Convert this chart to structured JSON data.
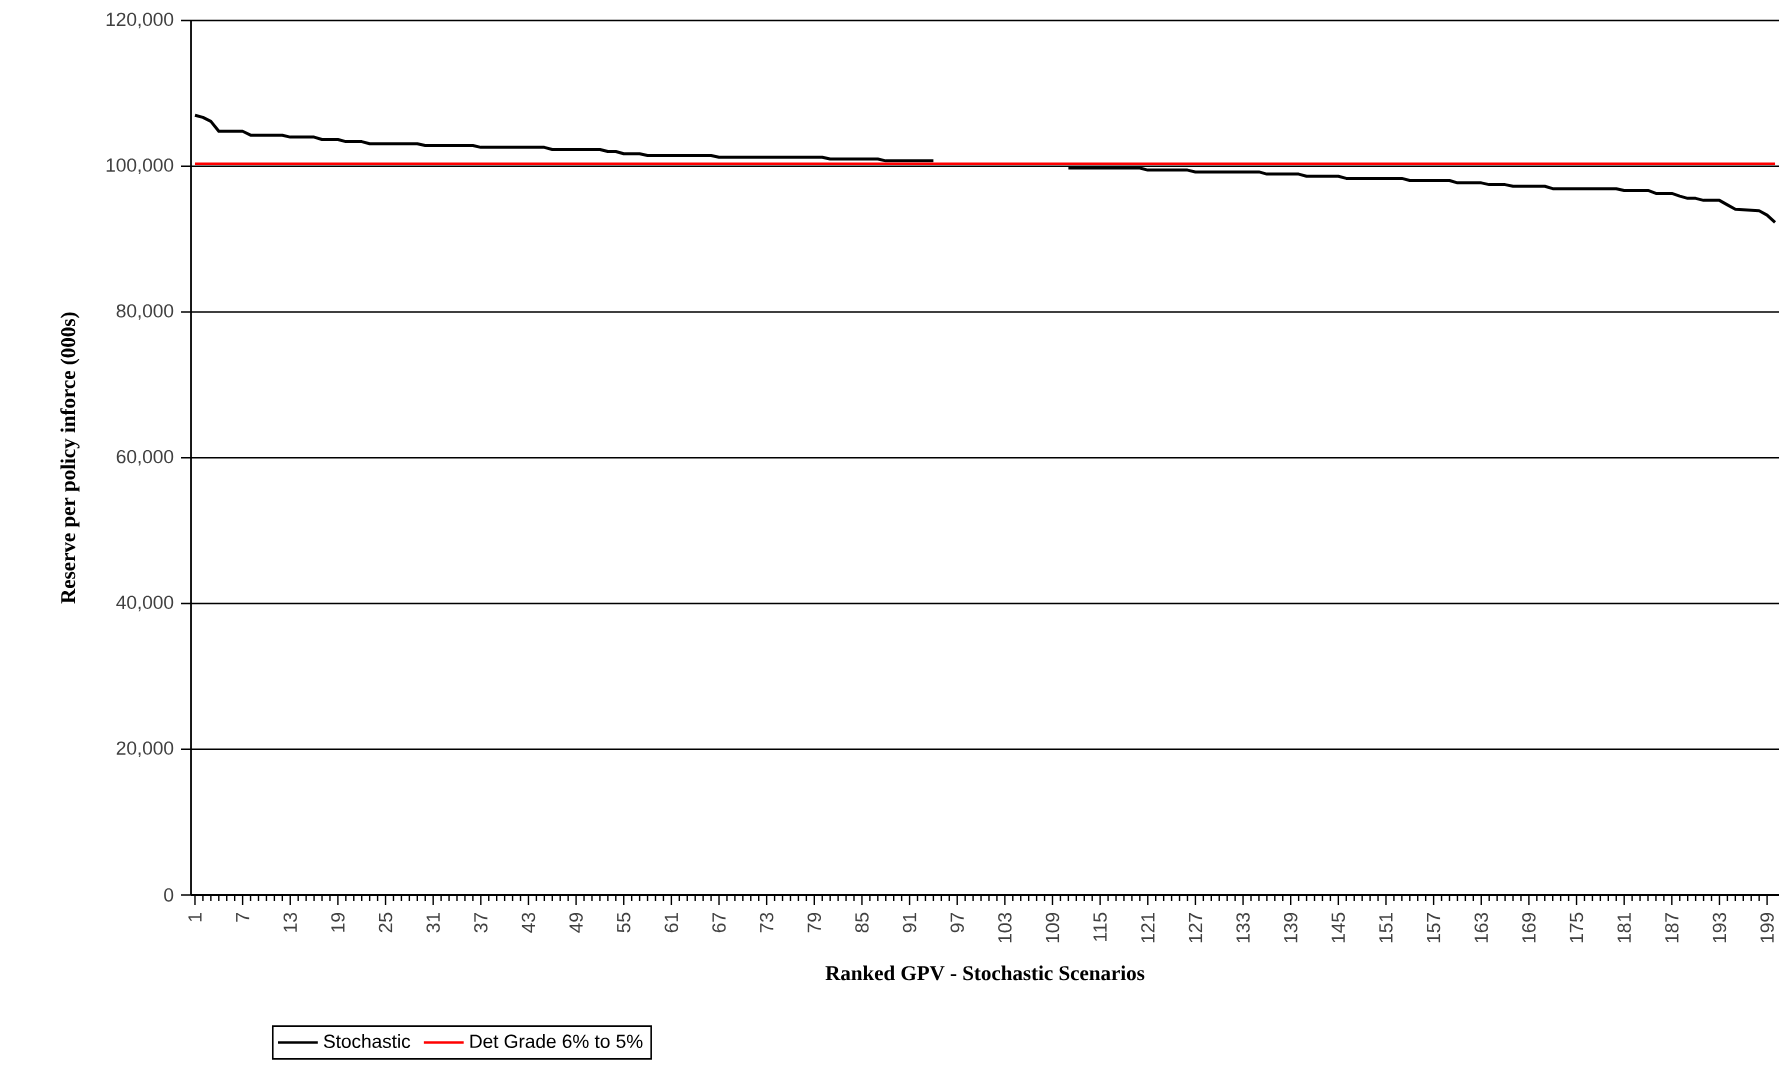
{
  "chart_data": {
    "type": "line",
    "xlabel": "Ranked GPV - Stochastic Scenarios",
    "ylabel": "Reserve per policy inforce (000s)",
    "xlim": [
      0.5,
      200.5
    ],
    "xticks": [
      1,
      7,
      13,
      19,
      25,
      31,
      37,
      43,
      49,
      55,
      61,
      67,
      73,
      79,
      85,
      91,
      97,
      103,
      109,
      115,
      121,
      127,
      133,
      139,
      145,
      151,
      157,
      163,
      169,
      175,
      181,
      187,
      193,
      199
    ],
    "ylim": [
      0,
      120000
    ],
    "yticks": [
      0,
      {
        "value": 20000,
        "label": "20,000"
      },
      {
        "value": 40000,
        "label": "40,000"
      },
      {
        "value": 60000,
        "label": "60,000"
      },
      {
        "value": 80000,
        "label": "80,000"
      },
      {
        "value": 100000,
        "label": "100,000"
      },
      {
        "value": 120000,
        "label": "120,000"
      }
    ],
    "grid": "y",
    "legend": "bottom left",
    "series": [
      {
        "name": "Stochastic",
        "color": "#000000",
        "x": [
          1,
          2,
          3,
          4,
          7,
          8,
          12,
          13,
          16,
          17,
          19,
          20,
          22,
          23,
          29,
          30,
          36,
          37,
          45,
          46,
          52,
          53,
          54,
          55,
          57,
          58,
          66,
          67,
          80,
          81,
          87,
          88,
          94,
          102,
          111,
          120,
          121,
          126,
          127,
          135,
          136,
          140,
          141,
          145,
          146,
          153,
          154,
          159,
          160,
          163,
          164,
          166,
          167,
          171,
          172,
          180,
          181,
          184,
          185,
          187,
          188,
          189,
          190,
          191,
          193,
          194,
          195,
          198,
          199,
          200
        ],
        "values": [
          107000,
          106700,
          106150,
          104800,
          104800,
          104260,
          104260,
          104000,
          104000,
          103670,
          103670,
          103380,
          103380,
          103080,
          103080,
          102850,
          102850,
          102590,
          102590,
          102300,
          102300,
          102030,
          102030,
          101710,
          101710,
          101480,
          101480,
          101240,
          101240,
          100990,
          100990,
          100740,
          100740,
          null,
          99750,
          99750,
          99470,
          99470,
          99220,
          99220,
          98920,
          98920,
          98620,
          98620,
          98330,
          98330,
          98050,
          98050,
          97720,
          97720,
          97480,
          97480,
          97250,
          97250,
          96920,
          96920,
          96680,
          96680,
          96270,
          96270,
          95900,
          95590,
          95590,
          95320,
          95320,
          94700,
          94100,
          93890,
          93300,
          92300
        ]
      },
      {
        "name": "Det Grade 6% to 5%",
        "color": "#ff0000",
        "x": [
          1,
          200
        ],
        "values": [
          100340,
          100340
        ]
      }
    ]
  }
}
